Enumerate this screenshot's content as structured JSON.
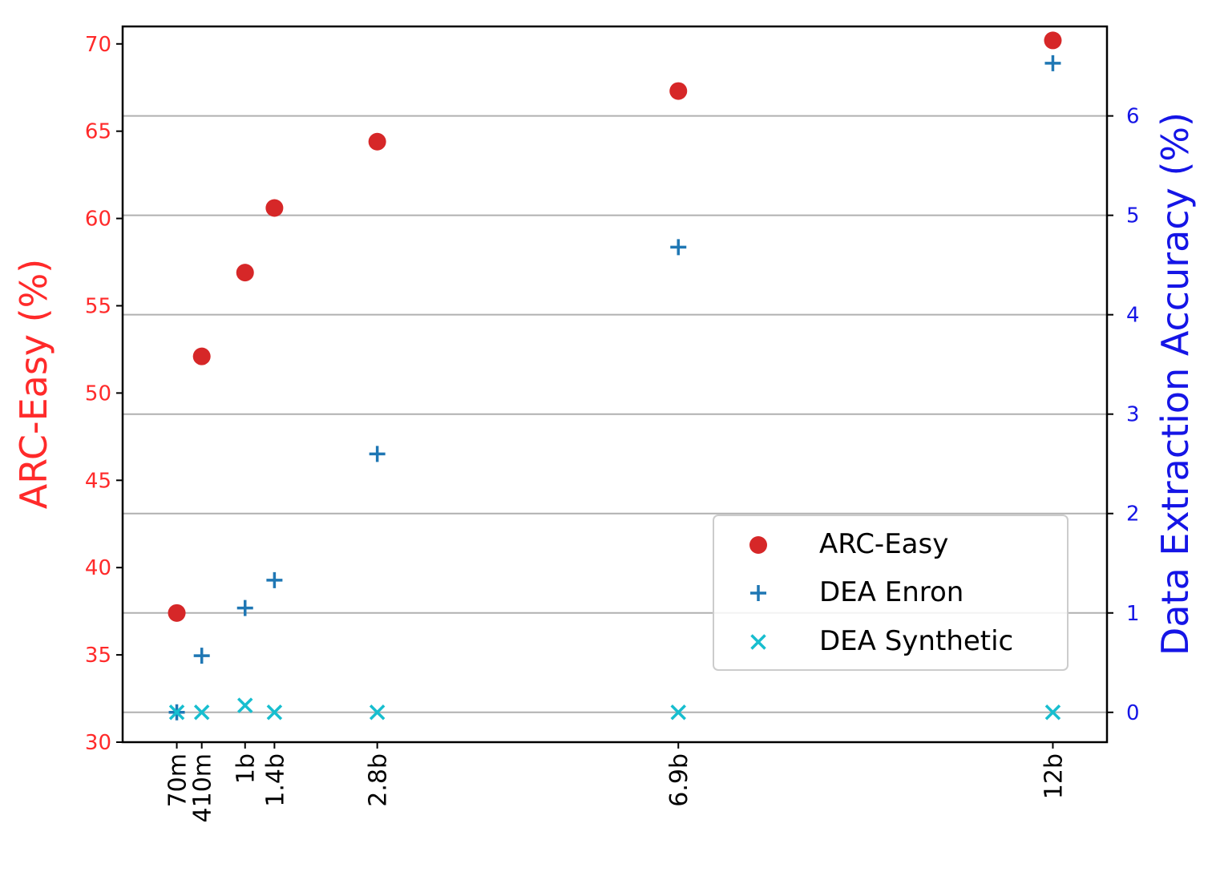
{
  "chart_data": {
    "type": "scatter",
    "categories": [
      "70m",
      "410m",
      "1b",
      "1.4b",
      "2.8b",
      "6.9b",
      "12b"
    ],
    "x_params_billion": [
      0.07,
      0.41,
      1.0,
      1.4,
      2.8,
      6.9,
      12.0
    ],
    "left_axis": {
      "label": "ARC-Easy (%)",
      "ylim": [
        30,
        71
      ],
      "ticks": [
        "30",
        "35",
        "40",
        "45",
        "50",
        "55",
        "60",
        "65",
        "70"
      ],
      "color": "#ff2a2a"
    },
    "right_axis": {
      "label": "Data Extraction Accuracy (%)",
      "ylim": [
        -0.3,
        6.9
      ],
      "ticks": [
        "0",
        "1",
        "2",
        "3",
        "4",
        "5",
        "6"
      ],
      "color": "#1515e6"
    },
    "grid": "right-axis horizontal",
    "legend_position": "lower-right",
    "series": [
      {
        "name": "ARC-Easy",
        "axis": "left",
        "marker": "circle",
        "color": "#d62728",
        "values": [
          37.4,
          52.1,
          56.9,
          60.6,
          64.4,
          67.3,
          70.2
        ]
      },
      {
        "name": "DEA Enron",
        "axis": "right",
        "marker": "plus",
        "color": "#1f77b4",
        "values": [
          0.0,
          0.57,
          1.05,
          1.33,
          2.6,
          4.68,
          6.53
        ]
      },
      {
        "name": "DEA Synthetic",
        "axis": "right",
        "marker": "x",
        "color": "#17becf",
        "values": [
          0.0,
          0.0,
          0.07,
          0.0,
          0.0,
          0.0,
          0.0
        ]
      }
    ]
  }
}
